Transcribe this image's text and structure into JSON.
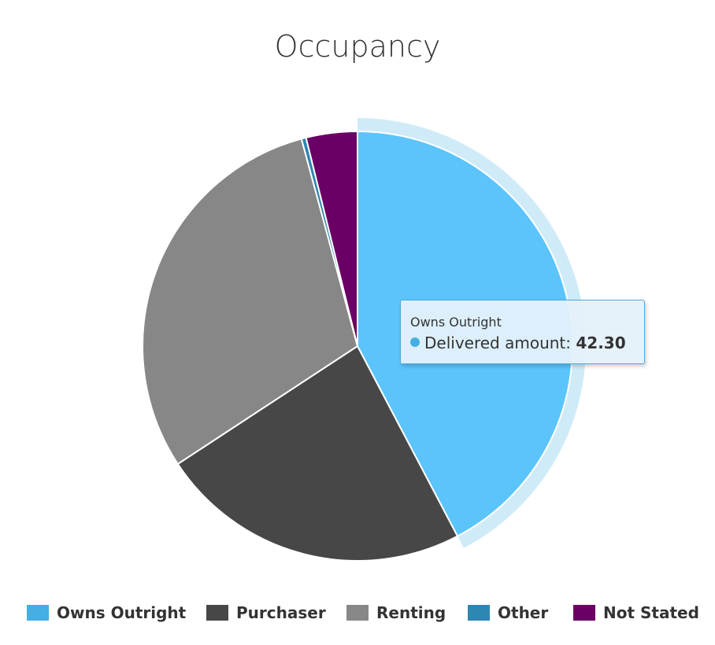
{
  "chart_data": {
    "type": "pie",
    "title": "Occupancy",
    "series_name": "Delivered amount",
    "slices": [
      {
        "label": "Owns Outright",
        "value": 42.3,
        "color": "#45aee3",
        "hover_color": "#5bc4fb"
      },
      {
        "label": "Purchaser",
        "value": 23.45,
        "color": "#474747"
      },
      {
        "label": "Renting",
        "value": 30.05,
        "color": "#878787"
      },
      {
        "label": "Other",
        "value": 0.35,
        "color": "#2e86b3"
      },
      {
        "label": "Not Stated",
        "value": 3.85,
        "color": "#6a0065"
      }
    ],
    "highlighted_index": 0,
    "legend_position": "bottom"
  },
  "tooltip": {
    "header": "Owns Outright",
    "series_label": "Delivered amount:",
    "value": "42.30"
  }
}
